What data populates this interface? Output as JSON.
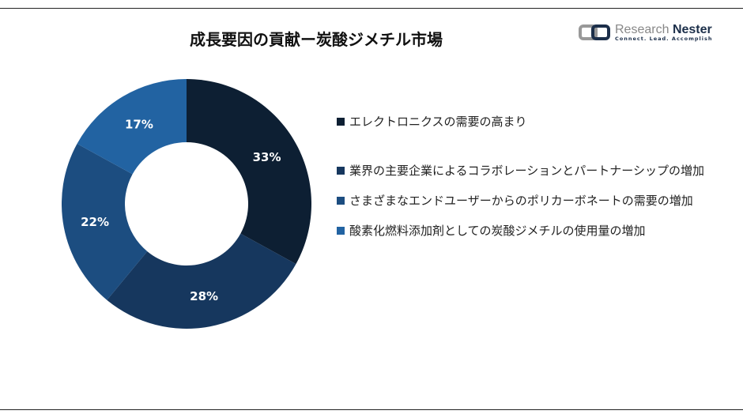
{
  "title": "成長要因の貢献ー炭酸ジメチル市場",
  "logo": {
    "name_a": "Research",
    "name_b": "Nester",
    "tagline": "Connect. Lead. Accomplish"
  },
  "chart_data": {
    "type": "pie",
    "donut": true,
    "title": "成長要因の貢献ー炭酸ジメチル市場",
    "categories": [
      "エレクトロニクスの需要の高まり",
      "業界の主要企業によるコラボレーションとパートナーシップの増加",
      "さまざまなエンドユーザーからのポリカーボネートの需要の増加",
      "酸素化燃料添加剤としての炭酸ジメチルの使用量の増加"
    ],
    "values": [
      33,
      28,
      22,
      17
    ],
    "labels": [
      "33%",
      "28%",
      "22%",
      "17%"
    ],
    "colors": [
      "#0d1f33",
      "#16375e",
      "#1c4d80",
      "#2263a2"
    ],
    "legend_position": "right"
  }
}
